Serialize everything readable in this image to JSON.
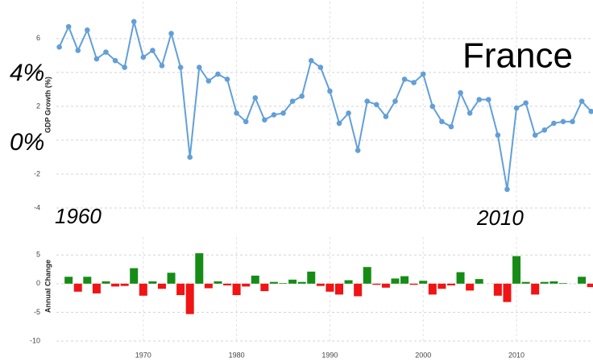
{
  "chart_data": [
    {
      "type": "line",
      "y_label": "GDP Growth (%)",
      "color": "#629fd8",
      "grid": true,
      "x": [
        1961,
        1962,
        1963,
        1964,
        1965,
        1966,
        1967,
        1968,
        1969,
        1970,
        1971,
        1972,
        1973,
        1974,
        1975,
        1976,
        1977,
        1978,
        1979,
        1980,
        1981,
        1982,
        1983,
        1984,
        1985,
        1986,
        1987,
        1988,
        1989,
        1990,
        1991,
        1992,
        1993,
        1994,
        1995,
        1996,
        1997,
        1998,
        1999,
        2000,
        2001,
        2002,
        2003,
        2004,
        2005,
        2006,
        2007,
        2008,
        2009,
        2010,
        2011,
        2012,
        2013,
        2014,
        2015,
        2016,
        2017,
        2018
      ],
      "values": [
        5.5,
        6.7,
        5.3,
        6.5,
        4.8,
        5.2,
        4.7,
        4.3,
        7.0,
        4.9,
        5.3,
        4.4,
        6.3,
        4.3,
        -1.0,
        4.3,
        3.5,
        3.9,
        3.6,
        1.6,
        1.1,
        2.5,
        1.2,
        1.5,
        1.6,
        2.3,
        2.6,
        4.7,
        4.3,
        2.9,
        1.0,
        1.6,
        -0.6,
        2.3,
        2.1,
        1.4,
        2.3,
        3.6,
        3.4,
        3.9,
        2.0,
        1.1,
        0.8,
        2.8,
        1.6,
        2.4,
        2.4,
        0.3,
        -2.9,
        1.9,
        2.2,
        0.3,
        0.6,
        1.0,
        1.1,
        1.1,
        2.3,
        1.7
      ],
      "xlim": [
        1960,
        2018.2
      ],
      "xticks": [
        1970,
        1980,
        1990,
        2000,
        2010
      ],
      "ylim": [
        -4,
        7.8
      ],
      "yticks": [
        -4,
        -2,
        0,
        2,
        4,
        6
      ],
      "annotations": [
        "4%",
        "0%",
        "1960",
        "2010",
        "France"
      ]
    },
    {
      "type": "bar",
      "y_label": "Annual Change",
      "positive_color": "#168c16",
      "negative_color": "#f01414",
      "grid": true,
      "x": [
        1962,
        1963,
        1964,
        1965,
        1966,
        1967,
        1968,
        1969,
        1970,
        1971,
        1972,
        1973,
        1974,
        1975,
        1976,
        1977,
        1978,
        1979,
        1980,
        1981,
        1982,
        1983,
        1984,
        1985,
        1986,
        1987,
        1988,
        1989,
        1990,
        1991,
        1992,
        1993,
        1994,
        1995,
        1996,
        1997,
        1998,
        1999,
        2000,
        2001,
        2002,
        2003,
        2004,
        2005,
        2006,
        2007,
        2008,
        2009,
        2010,
        2011,
        2012,
        2013,
        2014,
        2015,
        2016,
        2017,
        2018
      ],
      "values": [
        1.2,
        -1.4,
        1.2,
        -1.7,
        0.4,
        -0.5,
        -0.4,
        2.7,
        -2.1,
        0.4,
        -0.9,
        1.9,
        -2.0,
        -5.3,
        5.3,
        -0.8,
        0.4,
        -0.3,
        -2.0,
        -0.5,
        1.4,
        -1.3,
        0.3,
        0.1,
        0.7,
        0.3,
        2.1,
        -0.4,
        -1.4,
        -1.9,
        0.6,
        -2.2,
        2.9,
        -0.2,
        -0.7,
        0.9,
        1.3,
        -0.2,
        0.5,
        -1.9,
        -0.9,
        -0.3,
        2.0,
        -1.2,
        0.8,
        0.0,
        -2.1,
        -3.2,
        4.8,
        0.3,
        -1.9,
        0.3,
        0.4,
        0.1,
        0.0,
        1.2,
        -0.6
      ],
      "xlim": [
        1960,
        2018.2
      ],
      "xticks": [
        1970,
        1980,
        1990,
        2000,
        2010
      ],
      "ylim": [
        -10,
        7
      ],
      "yticks": [
        -10,
        -5,
        0,
        5
      ]
    }
  ]
}
